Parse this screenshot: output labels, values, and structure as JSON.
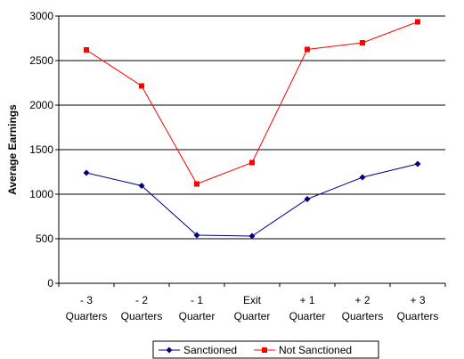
{
  "chart_data": {
    "type": "line",
    "title": "",
    "xlabel": "",
    "ylabel": "Average Earnings",
    "categories": [
      [
        "- 3",
        "Quarters"
      ],
      [
        "- 2",
        "Quarters"
      ],
      [
        "- 1",
        "Quarter"
      ],
      [
        "Exit",
        "Quarter"
      ],
      [
        "+ 1",
        "Quarter"
      ],
      [
        "+ 2",
        "Quarters"
      ],
      [
        "+ 3",
        "Quarters"
      ]
    ],
    "ylim": [
      0,
      3000
    ],
    "yticks": [
      0,
      500,
      1000,
      1500,
      2000,
      2500,
      3000
    ],
    "grid": "horizontal",
    "legend_position": "bottom",
    "series": [
      {
        "name": "Sanctioned",
        "color": "#000080",
        "marker": "diamond",
        "values": [
          1240,
          1095,
          540,
          530,
          945,
          1190,
          1340
        ]
      },
      {
        "name": "Not Sanctioned",
        "color": "#ff0000",
        "marker": "square",
        "values": [
          2620,
          2215,
          1115,
          1355,
          2625,
          2700,
          2935
        ]
      }
    ]
  }
}
